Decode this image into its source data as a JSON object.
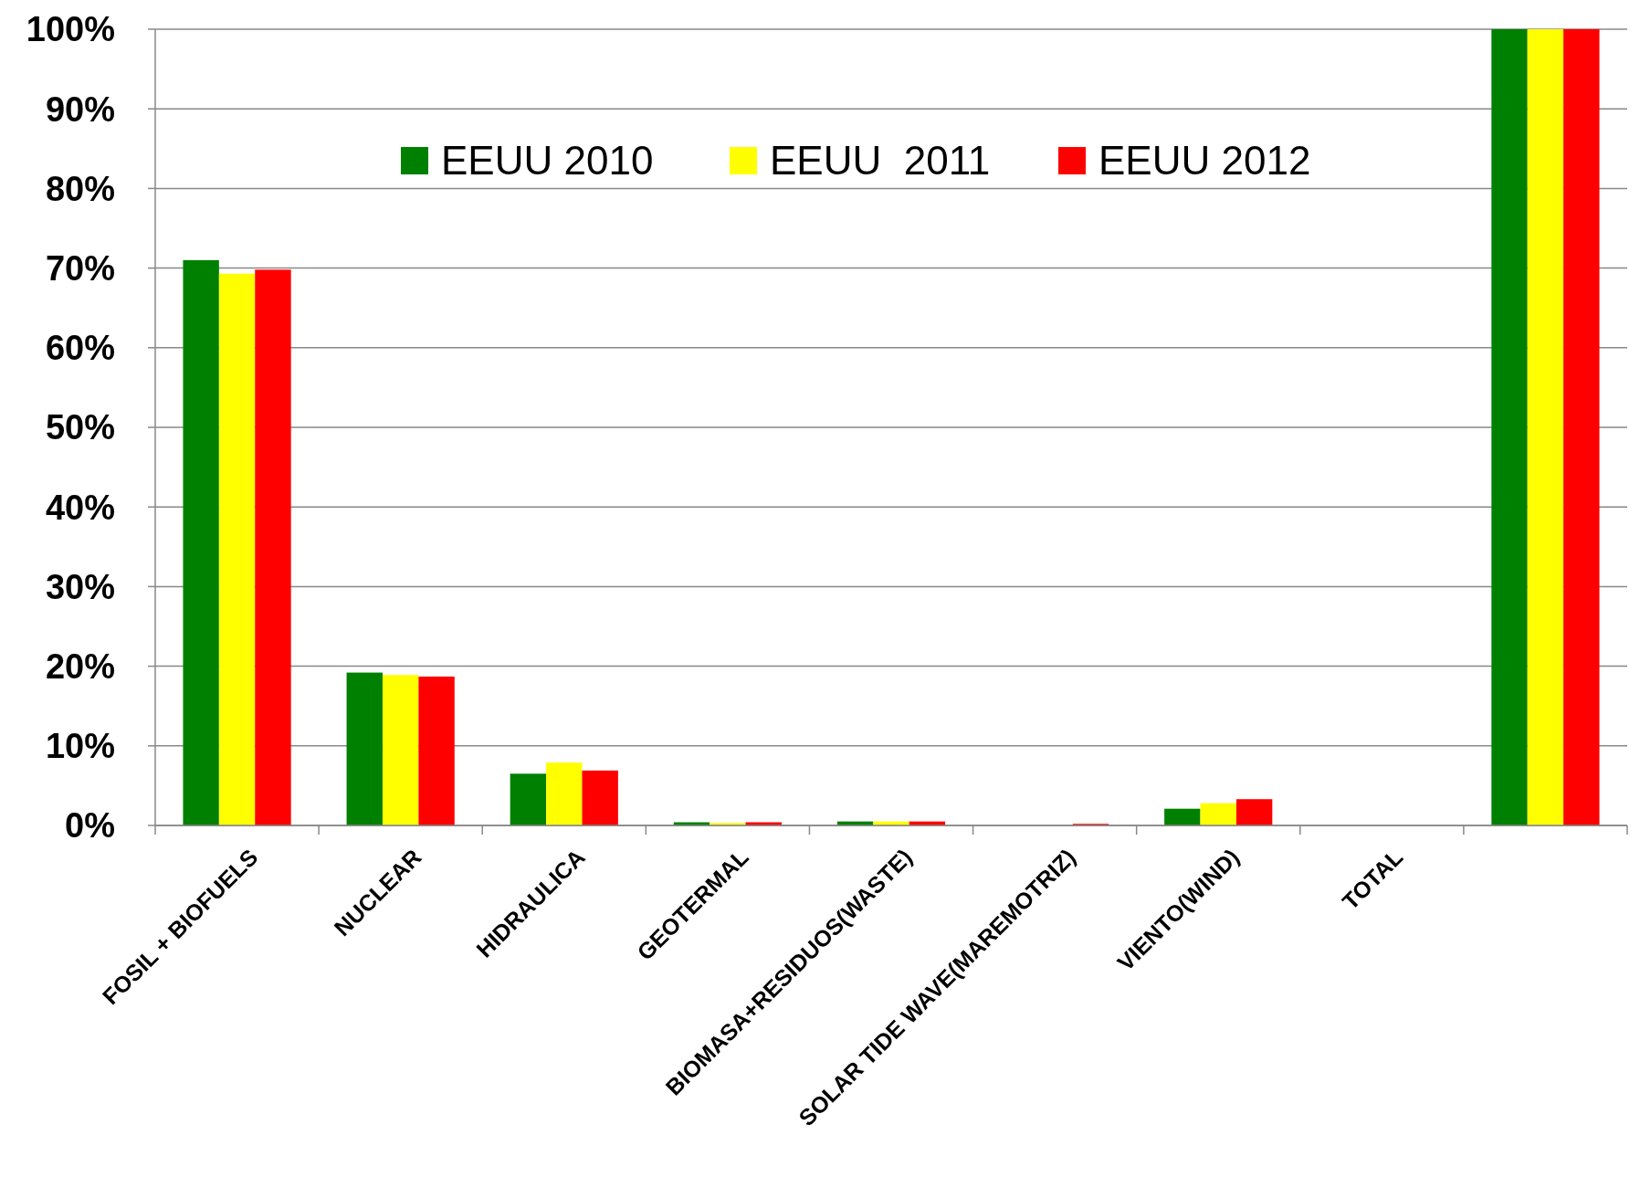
{
  "chart_data": {
    "type": "bar",
    "categories": [
      "FOSIL + BIOFUELS",
      "NUCLEAR",
      "HIDRAULICA",
      "GEOTERMAL",
      "BIOMASA+RESIDUOS(WASTE)",
      "SOLAR TIDE WAVE(MAREMOTRIZ)",
      "VIENTO(WIND)",
      "TOTAL",
      null
    ],
    "series": [
      {
        "name": "EEUU 2010",
        "color": "#008000",
        "values": [
          71.0,
          19.2,
          6.5,
          0.4,
          0.5,
          null,
          2.1,
          null,
          100
        ]
      },
      {
        "name": "EEUU  2011",
        "color": "#ffff00",
        "values": [
          69.3,
          18.9,
          7.9,
          0.3,
          0.5,
          null,
          2.8,
          null,
          100
        ]
      },
      {
        "name": "EEUU 2012",
        "color": "#ff0000",
        "values": [
          69.8,
          18.7,
          6.9,
          0.4,
          0.5,
          0.2,
          3.3,
          null,
          100
        ]
      }
    ],
    "ylim": [
      0,
      100
    ],
    "yticks": [
      {
        "value": 0,
        "label": "0%"
      },
      {
        "value": 10,
        "label": "10%"
      },
      {
        "value": 20,
        "label": "20%"
      },
      {
        "value": 30,
        "label": "30%"
      },
      {
        "value": 40,
        "label": "40%"
      },
      {
        "value": 50,
        "label": "50%"
      },
      {
        "value": 60,
        "label": "60%"
      },
      {
        "value": 70,
        "label": "70%"
      },
      {
        "value": 80,
        "label": "80%"
      },
      {
        "value": 90,
        "label": "90%"
      },
      {
        "value": 100,
        "label": "100%"
      }
    ],
    "grid": "y",
    "legend": "top"
  }
}
